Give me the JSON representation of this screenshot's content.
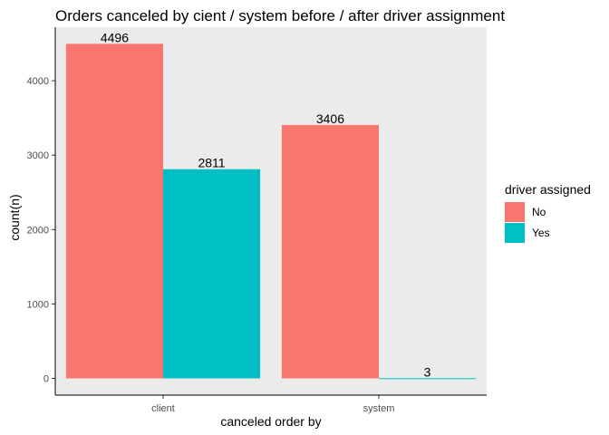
{
  "chart_data": {
    "type": "bar",
    "title": "Orders canceled by cient / system before / after driver assignment",
    "xlabel": "canceled order by",
    "ylabel": "count(n)",
    "categories": [
      "client",
      "system"
    ],
    "series": [
      {
        "name": "No",
        "values": [
          4496,
          3406
        ],
        "color": "#F8766D"
      },
      {
        "name": "Yes",
        "values": [
          2811,
          3
        ],
        "color": "#00BFC4"
      }
    ],
    "data_labels": [
      [
        "4496",
        "2811"
      ],
      [
        "3406",
        "3"
      ]
    ],
    "yticks": [
      0,
      1000,
      2000,
      3000,
      4000
    ],
    "ylim": [
      -225,
      4720
    ],
    "legend": {
      "title": "driver assigned",
      "position": "right"
    },
    "panel_background": "#EBEBEB",
    "grid": false
  }
}
